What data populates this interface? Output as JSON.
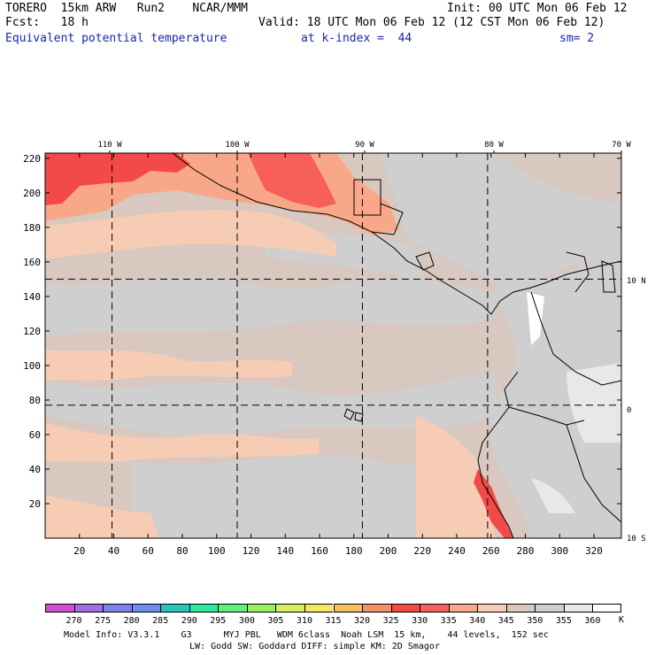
{
  "header": {
    "line1_left": "TORERO  15km ARW   Run2    NCAR/MMM",
    "line1_right": "Init: 00 UTC Mon 06 Feb 12",
    "line2_left": "Fcst:   18 h",
    "line2_right": "Valid: 18 UTC Mon 06 Feb 12 (12 CST Mon 06 Feb 12)",
    "field": "Equivalent potential temperature",
    "level": "at k-index =  44",
    "smoothing": "sm= 2"
  },
  "map": {
    "lon_labels": [
      "110 W",
      "100 W",
      "90 W",
      "80 W",
      "70 W"
    ],
    "lat_labels": [
      "10 N",
      "0",
      "10 S"
    ],
    "y_ticks": [
      "220",
      "200",
      "180",
      "160",
      "140",
      "120",
      "100",
      "80",
      "60",
      "40",
      "20"
    ],
    "x_ticks": [
      "20",
      "40",
      "60",
      "80",
      "100",
      "120",
      "140",
      "160",
      "180",
      "200",
      "220",
      "240",
      "260",
      "280",
      "300",
      "320"
    ],
    "grid_x_ticks": [
      39,
      112,
      185,
      258
    ],
    "grid_y_ticks": [
      150,
      77
    ],
    "x_range": [
      0,
      336
    ],
    "y_range": [
      0,
      223
    ]
  },
  "colorbar": {
    "labels": [
      "270",
      "275",
      "280",
      "285",
      "290",
      "295",
      "300",
      "305",
      "310",
      "315",
      "320",
      "325",
      "330",
      "335",
      "340",
      "345",
      "350",
      "355",
      "360"
    ],
    "unit": "K",
    "colors": [
      "#d24fd2",
      "#a06ee0",
      "#7f7fef",
      "#6e8ff0",
      "#27c4c0",
      "#2ee89e",
      "#5ff07a",
      "#9af060",
      "#d8ef5f",
      "#f3e85f",
      "#f7c060",
      "#f39365",
      "#f34a48",
      "#f7605a",
      "#f8a888",
      "#f6cdb4",
      "#d8c8c0",
      "#cfcfcf",
      "#e8e8e8",
      "#ffffff"
    ]
  },
  "footer": {
    "line1": "Model Info: V3.3.1    G3      MYJ PBL   WDM 6class  Noah LSM  15 km,    44 levels,  152 sec",
    "line2": "LW: Godd SW: Goddard DIFF: simple KM: 2D Smagor"
  }
}
